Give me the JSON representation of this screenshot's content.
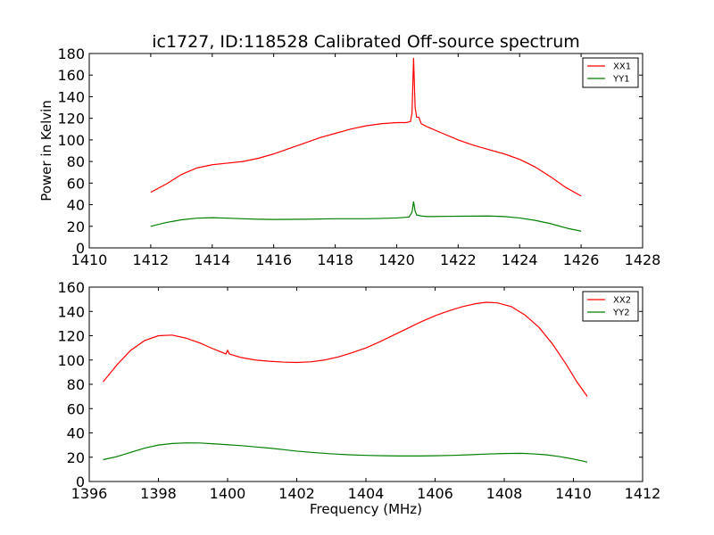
{
  "figure": {
    "title": "ic1727, ID:118528 Calibrated Off-source spectrum",
    "ylabel": "Power in Kelvin",
    "xlabel": "Frequency (MHz)"
  },
  "chart_data": [
    {
      "type": "line",
      "title": "ic1727, ID:118528 Calibrated Off-source spectrum",
      "xlabel": "",
      "ylabel": "Power in Kelvin",
      "xlim": [
        1410,
        1428
      ],
      "ylim": [
        0,
        180
      ],
      "xticks": [
        1410,
        1412,
        1414,
        1416,
        1418,
        1420,
        1422,
        1424,
        1426,
        1428
      ],
      "yticks": [
        0,
        20,
        40,
        60,
        80,
        100,
        120,
        140,
        160,
        180
      ],
      "legend_position": "top-right",
      "grid": false,
      "series": [
        {
          "name": "XX1",
          "color": "#ff0000",
          "points": [
            [
              1412.0,
              51.5
            ],
            [
              1412.5,
              59
            ],
            [
              1413.0,
              68
            ],
            [
              1413.5,
              74
            ],
            [
              1414.0,
              77
            ],
            [
              1414.5,
              78.5
            ],
            [
              1415.0,
              80
            ],
            [
              1415.5,
              83
            ],
            [
              1416.0,
              87
            ],
            [
              1416.5,
              92
            ],
            [
              1417.0,
              97
            ],
            [
              1417.5,
              102
            ],
            [
              1418.0,
              106
            ],
            [
              1418.5,
              110
            ],
            [
              1419.0,
              113
            ],
            [
              1419.5,
              115
            ],
            [
              1420.0,
              116
            ],
            [
              1420.3,
              116
            ],
            [
              1420.45,
              117
            ],
            [
              1420.5,
              125
            ],
            [
              1420.55,
              176
            ],
            [
              1420.6,
              130
            ],
            [
              1420.65,
              121
            ],
            [
              1420.72,
              121
            ],
            [
              1420.8,
              115
            ],
            [
              1420.9,
              113.5
            ],
            [
              1421.0,
              112
            ],
            [
              1421.5,
              106
            ],
            [
              1422.0,
              100
            ],
            [
              1422.5,
              95
            ],
            [
              1423.0,
              91
            ],
            [
              1423.5,
              87
            ],
            [
              1424.0,
              82
            ],
            [
              1424.5,
              75
            ],
            [
              1425.0,
              66
            ],
            [
              1425.5,
              56
            ],
            [
              1426.0,
              48
            ]
          ]
        },
        {
          "name": "YY1",
          "color": "#008000",
          "points": [
            [
              1412.0,
              20
            ],
            [
              1412.5,
              23.5
            ],
            [
              1413.0,
              26
            ],
            [
              1413.5,
              27.5
            ],
            [
              1414.0,
              28
            ],
            [
              1414.5,
              27.5
            ],
            [
              1415.0,
              27
            ],
            [
              1415.5,
              26.5
            ],
            [
              1416.0,
              26.3
            ],
            [
              1417.0,
              26.5
            ],
            [
              1418.0,
              27
            ],
            [
              1419.0,
              27
            ],
            [
              1419.5,
              27.3
            ],
            [
              1420.0,
              27.7
            ],
            [
              1420.4,
              28.5
            ],
            [
              1420.5,
              33
            ],
            [
              1420.55,
              43
            ],
            [
              1420.6,
              34
            ],
            [
              1420.65,
              30.5
            ],
            [
              1420.8,
              29.5
            ],
            [
              1421.0,
              29
            ],
            [
              1422.0,
              29.3
            ],
            [
              1423.0,
              29.5
            ],
            [
              1423.5,
              29
            ],
            [
              1424.0,
              27.7
            ],
            [
              1424.5,
              25.5
            ],
            [
              1425.0,
              22.5
            ],
            [
              1425.5,
              18.5
            ],
            [
              1426.0,
              15.5
            ]
          ]
        }
      ]
    },
    {
      "type": "line",
      "title": "",
      "xlabel": "Frequency (MHz)",
      "ylabel": "",
      "xlim": [
        1396,
        1412
      ],
      "ylim": [
        0,
        160
      ],
      "xticks": [
        1396,
        1398,
        1400,
        1402,
        1404,
        1406,
        1408,
        1410,
        1412
      ],
      "yticks": [
        0,
        20,
        40,
        60,
        80,
        100,
        120,
        140,
        160
      ],
      "legend_position": "top-right",
      "grid": false,
      "series": [
        {
          "name": "XX2",
          "color": "#ff0000",
          "points": [
            [
              1396.4,
              82
            ],
            [
              1396.8,
              96
            ],
            [
              1397.2,
              108
            ],
            [
              1397.6,
              116
            ],
            [
              1398.0,
              120
            ],
            [
              1398.4,
              120.5
            ],
            [
              1398.8,
              118
            ],
            [
              1399.2,
              114
            ],
            [
              1399.6,
              109
            ],
            [
              1399.95,
              105
            ],
            [
              1400.0,
              108
            ],
            [
              1400.05,
              105
            ],
            [
              1400.4,
              102
            ],
            [
              1400.8,
              100
            ],
            [
              1401.2,
              99
            ],
            [
              1401.6,
              98.3
            ],
            [
              1402.0,
              98
            ],
            [
              1402.4,
              98.5
            ],
            [
              1402.8,
              100
            ],
            [
              1403.2,
              102.5
            ],
            [
              1403.6,
              106
            ],
            [
              1404.0,
              110
            ],
            [
              1404.4,
              115
            ],
            [
              1404.8,
              120.5
            ],
            [
              1405.2,
              126
            ],
            [
              1405.6,
              131.5
            ],
            [
              1406.0,
              136.5
            ],
            [
              1406.4,
              140.5
            ],
            [
              1406.8,
              144
            ],
            [
              1407.2,
              146.5
            ],
            [
              1407.5,
              147.5
            ],
            [
              1407.8,
              147
            ],
            [
              1408.2,
              144
            ],
            [
              1408.6,
              137
            ],
            [
              1409.0,
              127
            ],
            [
              1409.4,
              113
            ],
            [
              1409.8,
              96
            ],
            [
              1410.1,
              82
            ],
            [
              1410.4,
              70
            ]
          ]
        },
        {
          "name": "YY2",
          "color": "#008000",
          "points": [
            [
              1396.4,
              18
            ],
            [
              1396.8,
              20.5
            ],
            [
              1397.2,
              24
            ],
            [
              1397.6,
              27.5
            ],
            [
              1398.0,
              30
            ],
            [
              1398.4,
              31.3
            ],
            [
              1398.8,
              31.8
            ],
            [
              1399.2,
              31.7
            ],
            [
              1399.6,
              31
            ],
            [
              1400.0,
              30.3
            ],
            [
              1400.4,
              29.5
            ],
            [
              1400.8,
              28.5
            ],
            [
              1401.2,
              27.5
            ],
            [
              1401.6,
              26.3
            ],
            [
              1402.0,
              25
            ],
            [
              1402.5,
              23.8
            ],
            [
              1403.0,
              22.8
            ],
            [
              1403.5,
              22
            ],
            [
              1404.0,
              21.5
            ],
            [
              1404.5,
              21.2
            ],
            [
              1405.0,
              21
            ],
            [
              1405.5,
              21
            ],
            [
              1406.0,
              21.2
            ],
            [
              1406.5,
              21.5
            ],
            [
              1407.0,
              22
            ],
            [
              1407.5,
              22.6
            ],
            [
              1408.0,
              23
            ],
            [
              1408.5,
              23.2
            ],
            [
              1408.8,
              22.8
            ],
            [
              1409.2,
              22
            ],
            [
              1409.6,
              20.5
            ],
            [
              1410.0,
              18.5
            ],
            [
              1410.4,
              16
            ]
          ]
        }
      ]
    }
  ]
}
